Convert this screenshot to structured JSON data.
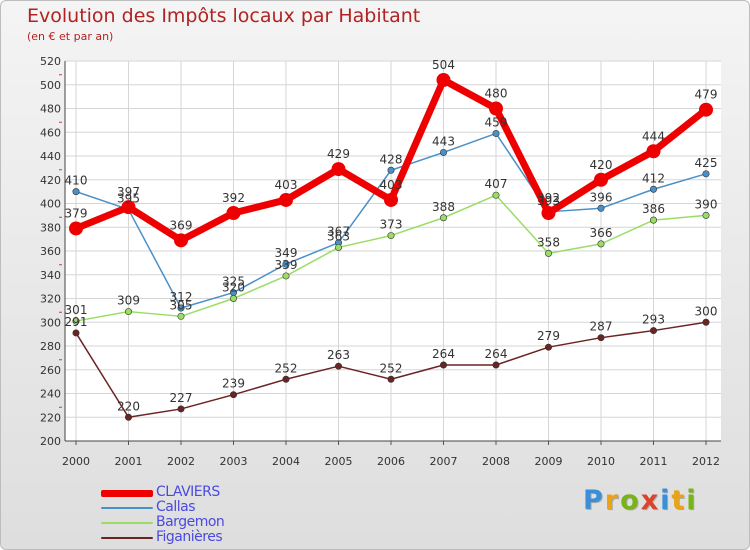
{
  "title": "Evolution des Impôts locaux par Habitant",
  "subtitle": "(en € et par an)",
  "logo": {
    "text": "Proxiti",
    "letters": [
      "P",
      "r",
      "o",
      "x",
      "i",
      "t",
      "i"
    ],
    "colors": [
      "#3a8fd8",
      "#e8a317",
      "#7ab317",
      "#d9442c",
      "#3a8fd8",
      "#e8a317",
      "#7ab317"
    ]
  },
  "chart_data": {
    "type": "line",
    "title": "Evolution des Impôts locaux par Habitant",
    "subtitle": "(en € et par an)",
    "xlabel": "",
    "ylabel": "",
    "ylim": [
      200,
      520
    ],
    "yticks": [
      200,
      220,
      240,
      260,
      280,
      300,
      320,
      340,
      360,
      380,
      400,
      420,
      440,
      460,
      480,
      500,
      520
    ],
    "grid": true,
    "legend_position": "bottom-left",
    "categories": [
      "2000",
      "2001",
      "2002",
      "2003",
      "2004",
      "2005",
      "2006",
      "2007",
      "2008",
      "2009",
      "2010",
      "2011",
      "2012"
    ],
    "series": [
      {
        "name": "CLAVIERS",
        "color": "#ee0000",
        "values": [
          379,
          397,
          369,
          392,
          403,
          429,
          403,
          504,
          480,
          392,
          420,
          444,
          479
        ],
        "labels": [
          "379",
          "397",
          "369",
          "392",
          "403",
          "429",
          "403",
          "504",
          "480",
          "392",
          "420",
          "444",
          "479"
        ]
      },
      {
        "name": "Callas",
        "color": "#4a90c8",
        "values": [
          410,
          395,
          312,
          325,
          349,
          367,
          428,
          443,
          459,
          393,
          396,
          412,
          425
        ],
        "labels": [
          "410",
          "395",
          "312",
          "325",
          "349",
          "367",
          "428",
          "443",
          "459",
          "393",
          "396",
          "412",
          "425"
        ]
      },
      {
        "name": "Bargemon",
        "color": "#99dd66",
        "values": [
          301,
          309,
          305,
          320,
          339,
          363,
          373,
          388,
          407,
          358,
          366,
          386,
          390
        ],
        "labels": [
          "301",
          "309",
          "305",
          "320",
          "339",
          "363",
          "373",
          "388",
          "407",
          "358",
          "366",
          "386",
          "390"
        ]
      },
      {
        "name": "Figanières",
        "color": "#6b2424",
        "values": [
          291,
          220,
          227,
          239,
          252,
          263,
          252,
          264,
          264,
          279,
          287,
          293,
          300
        ],
        "labels": [
          "291",
          "220",
          "227",
          "239",
          "252",
          "263",
          "252",
          "264",
          "264",
          "279",
          "287",
          "293",
          "300"
        ]
      }
    ]
  }
}
